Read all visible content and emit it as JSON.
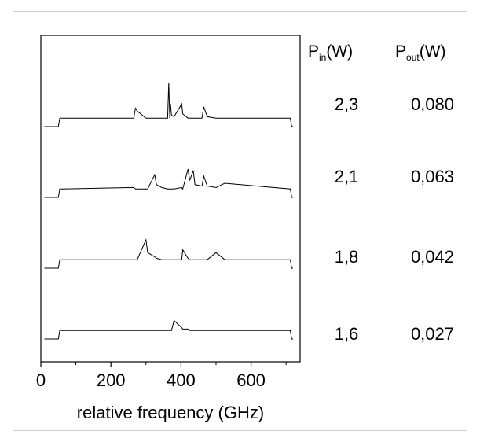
{
  "chart_data": {
    "type": "line",
    "title": "",
    "xlabel": "relative frequency (GHz)",
    "ylabel": "",
    "xlim": [
      0,
      740
    ],
    "xticks": [
      0,
      200,
      400,
      600
    ],
    "grid": false,
    "column_headers": {
      "pin": {
        "symbol": "P",
        "sub": "in",
        "unit": "(W)"
      },
      "pout": {
        "symbol": "P",
        "sub": "out",
        "unit": "(W)"
      }
    },
    "x": [
      10,
      50,
      54,
      60,
      265,
      270,
      275,
      300,
      305,
      325,
      330,
      345,
      362,
      365,
      368,
      370,
      373,
      380,
      402,
      405,
      420,
      425,
      435,
      440,
      460,
      465,
      475,
      500,
      525,
      712,
      716,
      720
    ],
    "series": [
      {
        "pin_label": "2,3",
        "pout_label": "0,080",
        "values": [
          0.0,
          0.0,
          0.3,
          0.3,
          0.3,
          0.65,
          0.55,
          0.3,
          0.3,
          0.3,
          0.3,
          0.3,
          0.3,
          1.55,
          0.3,
          0.8,
          0.4,
          0.35,
          0.8,
          0.45,
          0.3,
          0.3,
          0.3,
          0.3,
          0.3,
          0.7,
          0.35,
          0.3,
          0.3,
          0.3,
          0.0,
          0.0
        ]
      },
      {
        "pin_label": "2,1",
        "pout_label": "0,063",
        "values": [
          0.0,
          0.0,
          0.3,
          0.3,
          0.35,
          0.3,
          0.3,
          0.3,
          0.3,
          0.8,
          0.45,
          0.35,
          0.3,
          0.3,
          0.3,
          0.3,
          0.3,
          0.3,
          0.35,
          0.3,
          1.0,
          0.6,
          0.95,
          0.45,
          0.4,
          0.75,
          0.4,
          0.35,
          0.5,
          0.3,
          0.0,
          0.0
        ]
      },
      {
        "pin_label": "1,8",
        "pout_label": "0,042",
        "values": [
          0.0,
          0.0,
          0.3,
          0.3,
          0.3,
          0.3,
          0.3,
          1.0,
          0.55,
          0.4,
          0.35,
          0.3,
          0.3,
          0.3,
          0.3,
          0.3,
          0.3,
          0.3,
          0.3,
          0.65,
          0.35,
          0.3,
          0.3,
          0.3,
          0.3,
          0.3,
          0.3,
          0.55,
          0.3,
          0.3,
          0.0,
          0.0
        ]
      },
      {
        "pin_label": "1,6",
        "pout_label": "0,027",
        "values": [
          0.0,
          0.0,
          0.3,
          0.3,
          0.3,
          0.3,
          0.3,
          0.3,
          0.3,
          0.3,
          0.3,
          0.3,
          0.3,
          0.3,
          0.3,
          0.3,
          0.3,
          0.65,
          0.4,
          0.35,
          0.35,
          0.3,
          0.3,
          0.3,
          0.3,
          0.3,
          0.3,
          0.3,
          0.3,
          0.3,
          0.0,
          0.0
        ]
      }
    ]
  }
}
